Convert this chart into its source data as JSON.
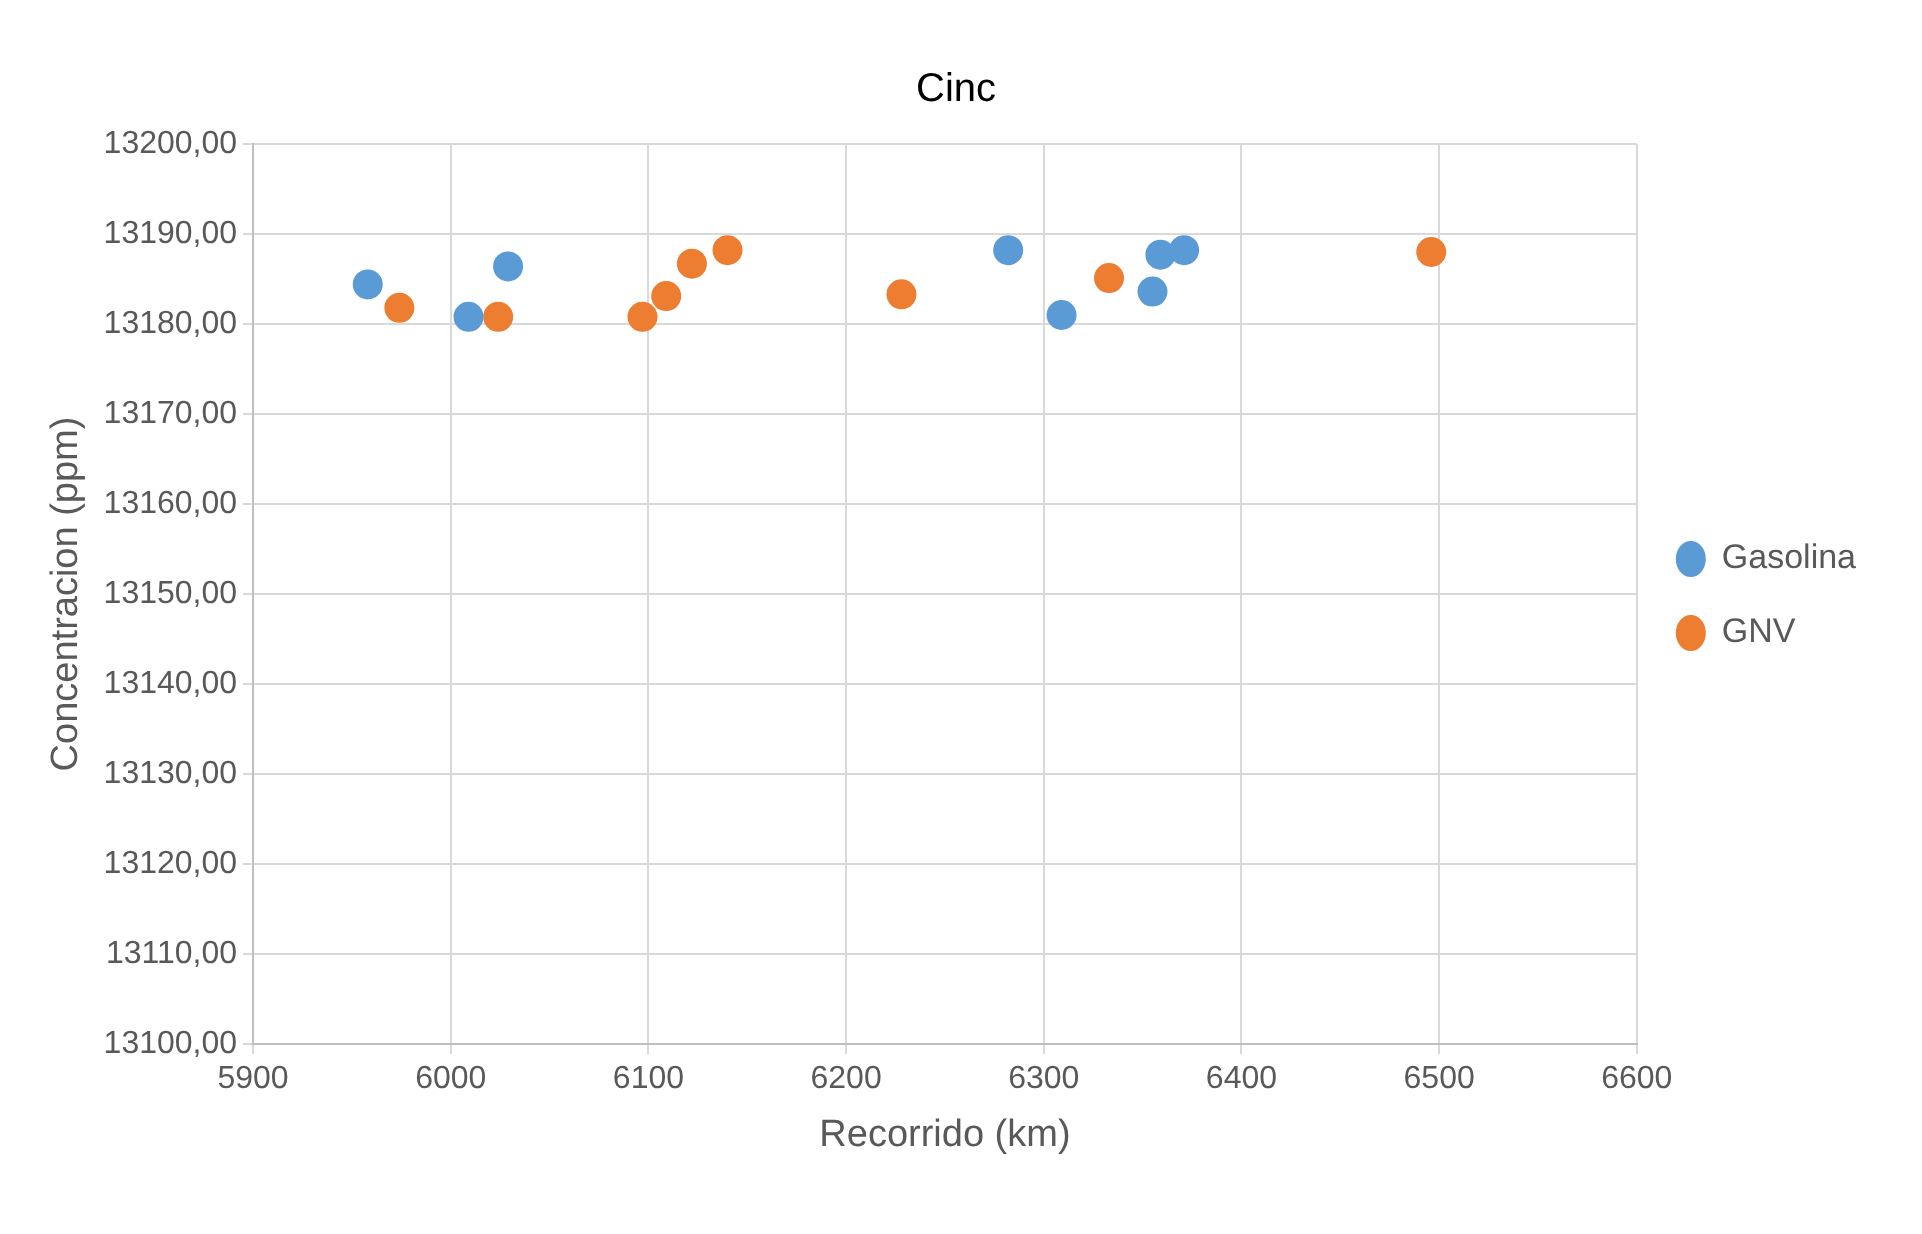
{
  "chart_data": {
    "type": "scatter",
    "title": "Cinc",
    "xlabel": "Recorrido (km)",
    "ylabel": "Concentracion (ppm)",
    "series": [
      {
        "name": "Gasolina",
        "color": "#5b9bd5",
        "x": [
          5958,
          6009,
          6029,
          6282,
          6309,
          6355,
          6359,
          6371
        ],
        "values": [
          13184.4,
          13180.8,
          13186.4,
          13188.2,
          13181.0,
          13183.6,
          13187.7,
          13188.2
        ]
      },
      {
        "name": "GNV",
        "color": "#ed7d31",
        "x": [
          5974,
          6024,
          6097,
          6109,
          6122,
          6140,
          6228,
          6333,
          6496
        ],
        "values": [
          13181.8,
          13180.8,
          13180.8,
          13183.1,
          13186.7,
          13188.2,
          13183.3,
          13185.1,
          13188.0
        ]
      }
    ],
    "xlim": [
      5900,
      6600
    ],
    "xticks": [
      5900,
      6000,
      6100,
      6200,
      6300,
      6400,
      6500,
      6600
    ],
    "ylim": [
      13100,
      13200
    ],
    "yticks": [
      {
        "value": 13100,
        "label": "13100,00"
      },
      {
        "value": 13110,
        "label": "13110,00"
      },
      {
        "value": 13120,
        "label": "13120,00"
      },
      {
        "value": 13130,
        "label": "13130,00"
      },
      {
        "value": 13140,
        "label": "13140,00"
      },
      {
        "value": 13150,
        "label": "13150,00"
      },
      {
        "value": 13160,
        "label": "13160,00"
      },
      {
        "value": 13170,
        "label": "13170,00"
      },
      {
        "value": 13180,
        "label": "13180,00"
      },
      {
        "value": 13190,
        "label": "13190,00"
      },
      {
        "value": 13200,
        "label": "13200,00"
      }
    ],
    "grid": true,
    "legend": "right",
    "marker": "circle"
  }
}
